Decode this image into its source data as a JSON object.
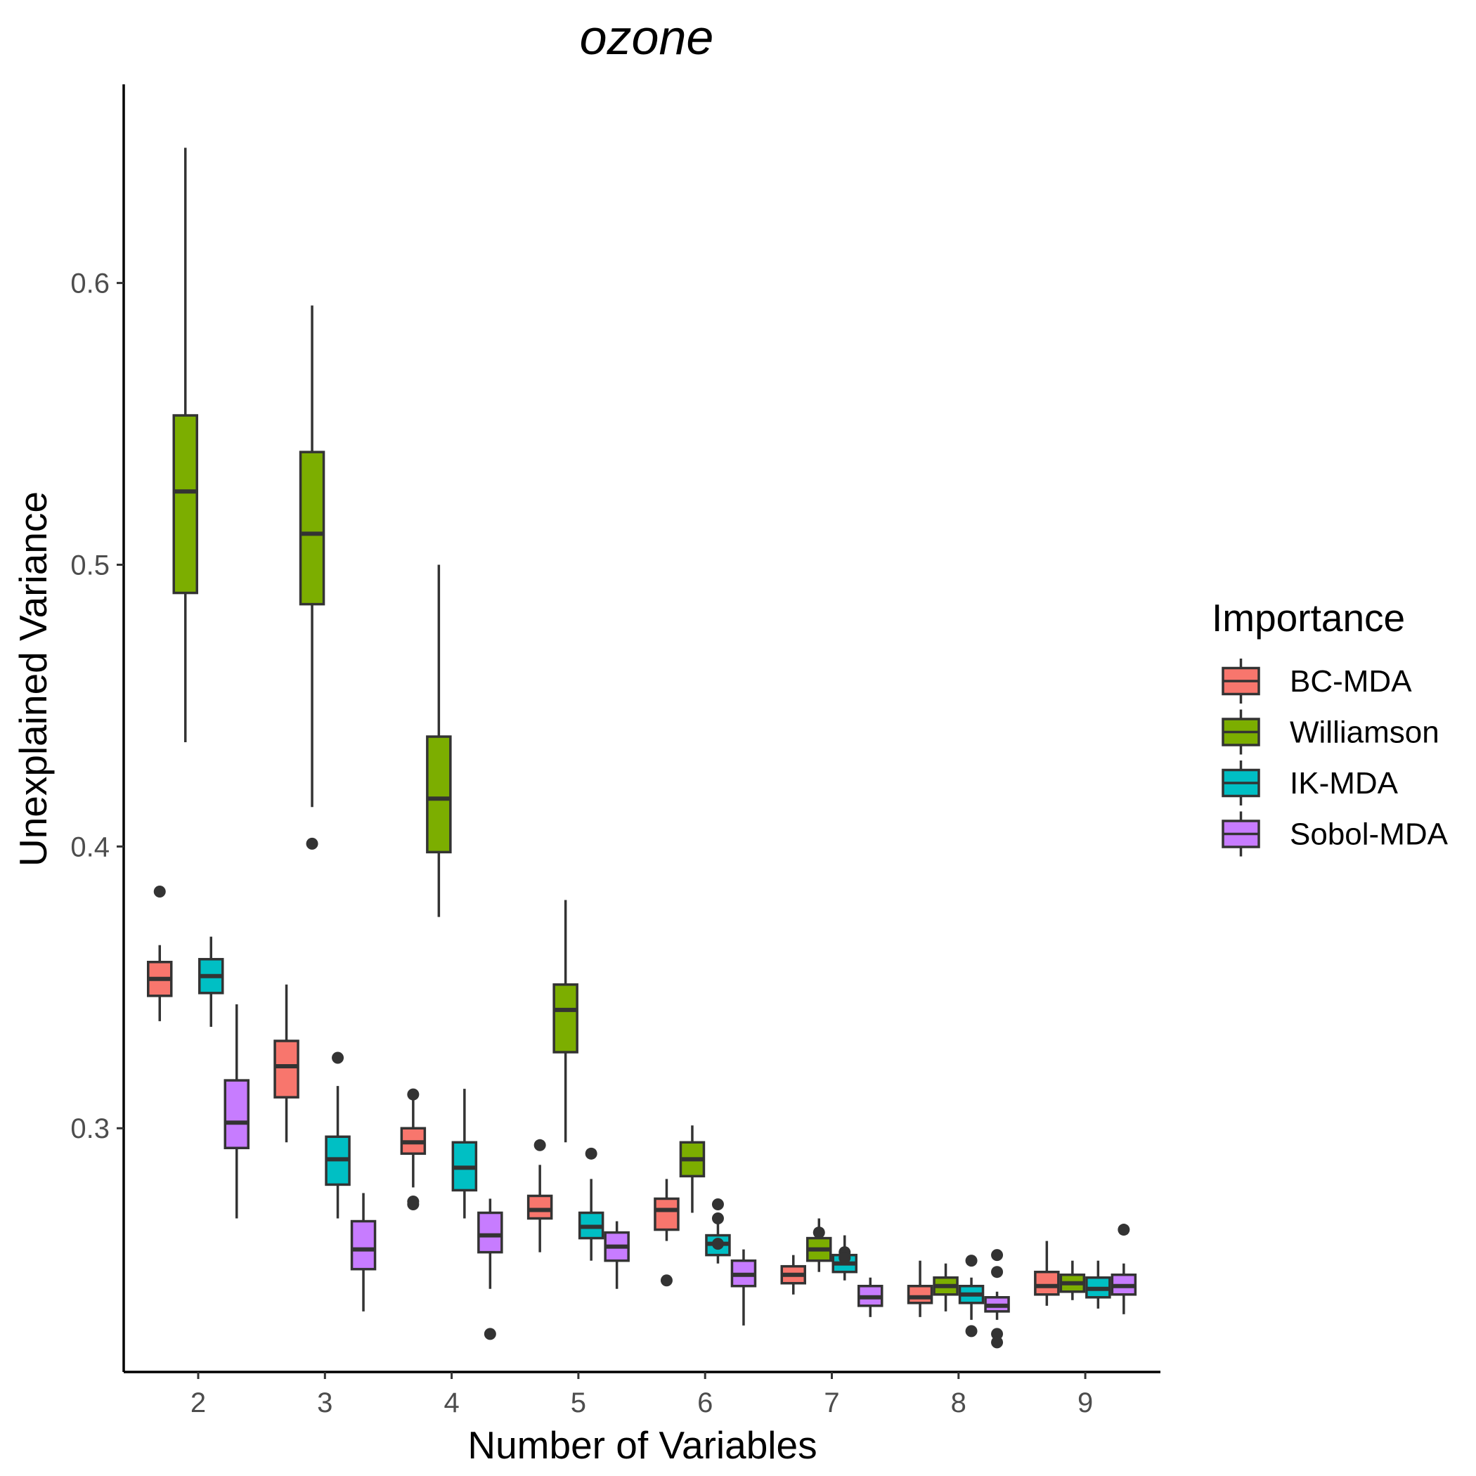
{
  "chart_data": {
    "type": "boxplot",
    "title": "ozone",
    "xlabel": "Number of Variables",
    "ylabel": "Unexplained Variance",
    "categories": [
      "2",
      "3",
      "4",
      "5",
      "6",
      "7",
      "8",
      "9"
    ],
    "ylim": [
      0.2135,
      0.6705
    ],
    "yticks": [
      0.3,
      0.4,
      0.5,
      0.6
    ],
    "ytick_labels": [
      "0.3",
      "0.4",
      "0.5",
      "0.6"
    ],
    "grid": false,
    "legend": {
      "title": "Importance",
      "position": "right",
      "entries": [
        "BC-MDA",
        "Williamson",
        "IK-MDA",
        "Sobol-MDA"
      ]
    },
    "colors": {
      "BC-MDA": "#F8766D",
      "Williamson": "#7CAE00",
      "IK-MDA": "#00BFC4",
      "Sobol-MDA": "#C77CFF",
      "outline": "#333333",
      "axis": "#000000"
    },
    "series": [
      {
        "name": "BC-MDA",
        "boxes": [
          {
            "x": "2",
            "min": 0.338,
            "q1": 0.347,
            "median": 0.353,
            "q3": 0.359,
            "max": 0.365,
            "outliers": [
              0.384
            ]
          },
          {
            "x": "3",
            "min": 0.295,
            "q1": 0.311,
            "median": 0.322,
            "q3": 0.331,
            "max": 0.351,
            "outliers": []
          },
          {
            "x": "4",
            "min": 0.279,
            "q1": 0.291,
            "median": 0.295,
            "q3": 0.3,
            "max": 0.31,
            "outliers": [
              0.312,
              0.273,
              0.274
            ]
          },
          {
            "x": "5",
            "min": 0.256,
            "q1": 0.268,
            "median": 0.271,
            "q3": 0.276,
            "max": 0.287,
            "outliers": [
              0.294
            ]
          },
          {
            "x": "6",
            "min": 0.26,
            "q1": 0.264,
            "median": 0.271,
            "q3": 0.275,
            "max": 0.282,
            "outliers": [
              0.246
            ]
          },
          {
            "x": "7",
            "min": 0.241,
            "q1": 0.245,
            "median": 0.248,
            "q3": 0.251,
            "max": 0.255,
            "outliers": []
          },
          {
            "x": "8",
            "min": 0.233,
            "q1": 0.238,
            "median": 0.24,
            "q3": 0.244,
            "max": 0.253,
            "outliers": []
          },
          {
            "x": "9",
            "min": 0.237,
            "q1": 0.241,
            "median": 0.244,
            "q3": 0.249,
            "max": 0.26,
            "outliers": []
          }
        ]
      },
      {
        "name": "Williamson",
        "boxes": [
          {
            "x": "2",
            "min": 0.437,
            "q1": 0.49,
            "median": 0.526,
            "q3": 0.553,
            "max": 0.648,
            "outliers": []
          },
          {
            "x": "3",
            "min": 0.414,
            "q1": 0.486,
            "median": 0.511,
            "q3": 0.54,
            "max": 0.592,
            "outliers": [
              0.401
            ]
          },
          {
            "x": "4",
            "min": 0.375,
            "q1": 0.398,
            "median": 0.417,
            "q3": 0.439,
            "max": 0.5,
            "outliers": []
          },
          {
            "x": "5",
            "min": 0.295,
            "q1": 0.327,
            "median": 0.342,
            "q3": 0.351,
            "max": 0.381,
            "outliers": []
          },
          {
            "x": "6",
            "min": 0.27,
            "q1": 0.283,
            "median": 0.289,
            "q3": 0.295,
            "max": 0.301,
            "outliers": []
          },
          {
            "x": "7",
            "min": 0.249,
            "q1": 0.253,
            "median": 0.257,
            "q3": 0.261,
            "max": 0.268,
            "outliers": [
              0.263
            ]
          },
          {
            "x": "8",
            "min": 0.235,
            "q1": 0.241,
            "median": 0.244,
            "q3": 0.247,
            "max": 0.252,
            "outliers": []
          },
          {
            "x": "9",
            "min": 0.239,
            "q1": 0.242,
            "median": 0.245,
            "q3": 0.248,
            "max": 0.253,
            "outliers": []
          }
        ]
      },
      {
        "name": "IK-MDA",
        "boxes": [
          {
            "x": "2",
            "min": 0.336,
            "q1": 0.348,
            "median": 0.354,
            "q3": 0.36,
            "max": 0.368,
            "outliers": []
          },
          {
            "x": "3",
            "min": 0.268,
            "q1": 0.28,
            "median": 0.289,
            "q3": 0.297,
            "max": 0.315,
            "outliers": [
              0.325
            ]
          },
          {
            "x": "4",
            "min": 0.268,
            "q1": 0.278,
            "median": 0.286,
            "q3": 0.295,
            "max": 0.314,
            "outliers": []
          },
          {
            "x": "5",
            "min": 0.253,
            "q1": 0.261,
            "median": 0.265,
            "q3": 0.27,
            "max": 0.282,
            "outliers": [
              0.291
            ]
          },
          {
            "x": "6",
            "min": 0.252,
            "q1": 0.255,
            "median": 0.259,
            "q3": 0.262,
            "max": 0.266,
            "outliers": [
              0.273,
              0.268,
              0.259
            ]
          },
          {
            "x": "7",
            "min": 0.246,
            "q1": 0.249,
            "median": 0.252,
            "q3": 0.255,
            "max": 0.262,
            "outliers": [
              0.256,
              0.254
            ]
          },
          {
            "x": "8",
            "min": 0.232,
            "q1": 0.238,
            "median": 0.241,
            "q3": 0.244,
            "max": 0.247,
            "outliers": [
              0.253,
              0.228
            ]
          },
          {
            "x": "9",
            "min": 0.236,
            "q1": 0.24,
            "median": 0.243,
            "q3": 0.247,
            "max": 0.253,
            "outliers": []
          }
        ]
      },
      {
        "name": "Sobol-MDA",
        "boxes": [
          {
            "x": "2",
            "min": 0.268,
            "q1": 0.293,
            "median": 0.302,
            "q3": 0.317,
            "max": 0.344,
            "outliers": []
          },
          {
            "x": "3",
            "min": 0.235,
            "q1": 0.25,
            "median": 0.257,
            "q3": 0.267,
            "max": 0.277,
            "outliers": []
          },
          {
            "x": "4",
            "min": 0.243,
            "q1": 0.256,
            "median": 0.262,
            "q3": 0.27,
            "max": 0.275,
            "outliers": [
              0.227
            ]
          },
          {
            "x": "5",
            "min": 0.243,
            "q1": 0.253,
            "median": 0.258,
            "q3": 0.263,
            "max": 0.267,
            "outliers": []
          },
          {
            "x": "6",
            "min": 0.23,
            "q1": 0.244,
            "median": 0.248,
            "q3": 0.253,
            "max": 0.257,
            "outliers": []
          },
          {
            "x": "7",
            "min": 0.233,
            "q1": 0.237,
            "median": 0.24,
            "q3": 0.244,
            "max": 0.247,
            "outliers": []
          },
          {
            "x": "8",
            "min": 0.232,
            "q1": 0.235,
            "median": 0.237,
            "q3": 0.24,
            "max": 0.242,
            "outliers": [
              0.255,
              0.249,
              0.227,
              0.224
            ]
          },
          {
            "x": "9",
            "min": 0.234,
            "q1": 0.241,
            "median": 0.244,
            "q3": 0.248,
            "max": 0.252,
            "outliers": [
              0.264
            ]
          }
        ]
      }
    ]
  }
}
